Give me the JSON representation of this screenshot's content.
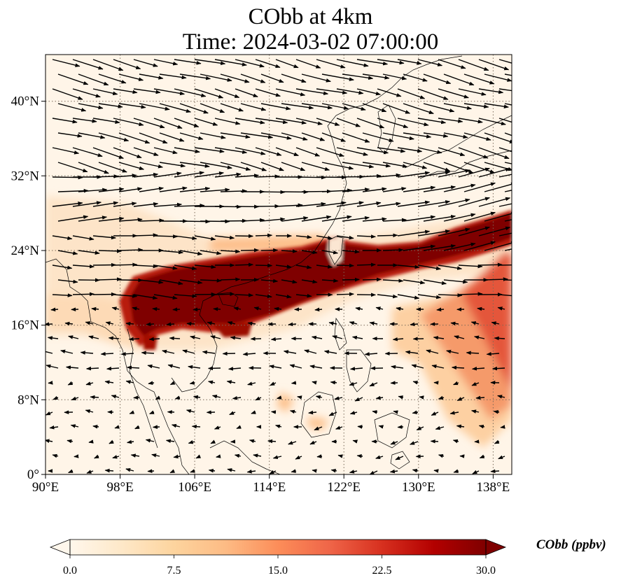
{
  "title": {
    "line1": "CObb at 4km",
    "line2": "Time: 2024-03-02 07:00:00"
  },
  "map": {
    "lon_range": [
      90,
      140
    ],
    "lat_range": [
      0,
      45
    ],
    "x_ticks": [
      "90°E",
      "98°E",
      "106°E",
      "114°E",
      "122°E",
      "130°E",
      "138°E"
    ],
    "x_tick_values": [
      90,
      98,
      106,
      114,
      122,
      130,
      138
    ],
    "y_ticks": [
      "0°",
      "8°N",
      "16°N",
      "24°N",
      "32°N",
      "40°N"
    ],
    "y_tick_values": [
      0,
      8,
      16,
      24,
      32,
      40
    ],
    "gridlines": "dotted"
  },
  "colorbar": {
    "label": "CObb (ppbv)",
    "ticks": [
      "0.0",
      "7.5",
      "15.0",
      "22.5",
      "30.0"
    ],
    "range": [
      0,
      30
    ],
    "colormap": "OrRd",
    "extend": "both",
    "colors": [
      "#fff7ec",
      "#fee8c8",
      "#fdd49e",
      "#fdbb84",
      "#fc8d59",
      "#ef6548",
      "#d7301f",
      "#b30000",
      "#7f0000"
    ]
  }
}
